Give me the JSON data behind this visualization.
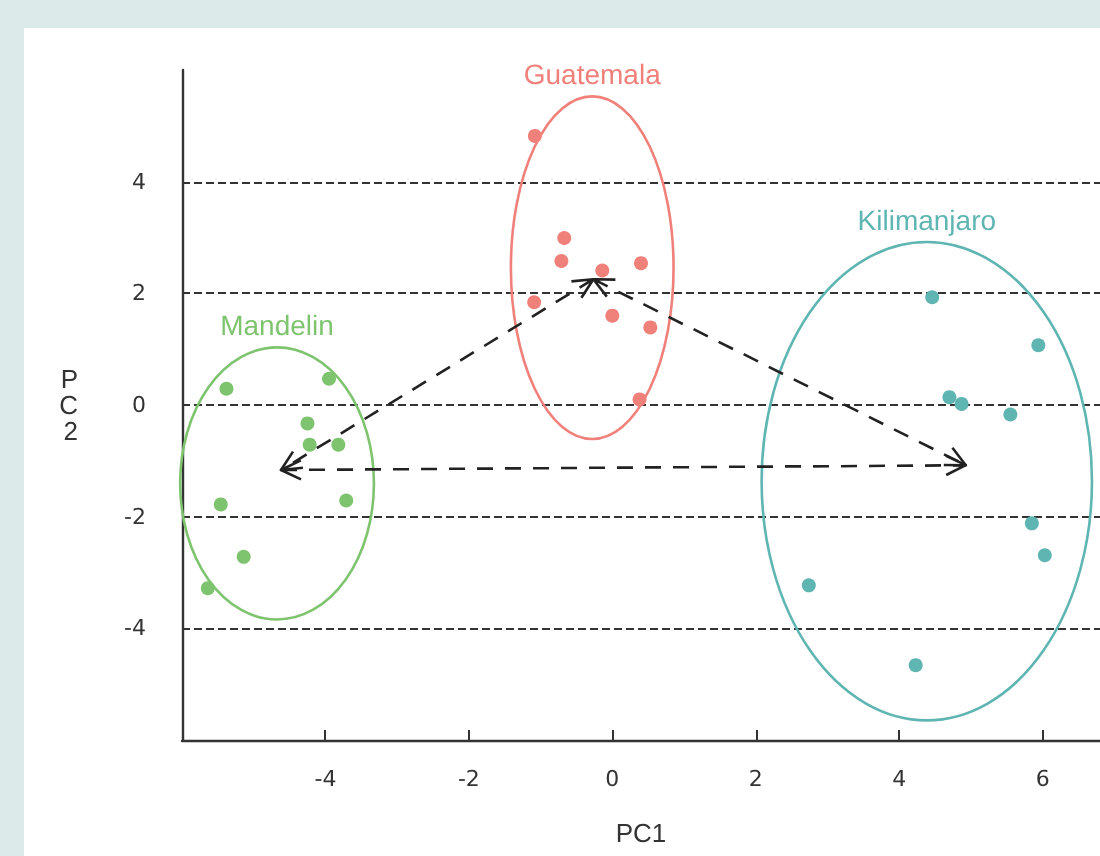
{
  "chart_data": {
    "type": "scatter",
    "xlabel": "PC1",
    "ylabel": "PC2",
    "xlim": [
      -6,
      6.8
    ],
    "xticks": [
      -4,
      -2,
      0,
      2,
      4,
      6
    ],
    "ylim": [
      -6,
      6
    ],
    "yticks": [
      -4,
      -2,
      0,
      2,
      4
    ],
    "grid": "y",
    "marker": "circle",
    "legend": false,
    "series": [
      {
        "name": "Guatemala",
        "color": "#f0807a",
        "x": [
          -1.08,
          -0.67,
          -0.71,
          -0.14,
          0.4,
          -1.09,
          0,
          0.53,
          0.38
        ],
        "values": [
          4.82,
          2.99,
          2.58,
          2.41,
          2.54,
          1.84,
          1.6,
          1.39,
          0.1
        ]
      },
      {
        "name": "Mandelin",
        "color": "#7ec46f",
        "x": [
          -5.38,
          -3.95,
          -4.25,
          -4.22,
          -3.82,
          -5.46,
          -3.71,
          -5.14,
          -5.64
        ],
        "values": [
          0.29,
          0.47,
          -0.33,
          -0.71,
          -0.71,
          -1.78,
          -1.71,
          -2.72,
          -3.28
        ]
      },
      {
        "name": "Kilimanjaro",
        "color": "#5eb5b2",
        "x": [
          4.46,
          5.94,
          4.7,
          4.87,
          5.55,
          5.85,
          6.03,
          2.74,
          4.23
        ],
        "values": [
          1.93,
          1.07,
          0.14,
          0.02,
          -0.17,
          -2.12,
          -2.69,
          -3.23,
          -4.66
        ]
      }
    ]
  }
}
